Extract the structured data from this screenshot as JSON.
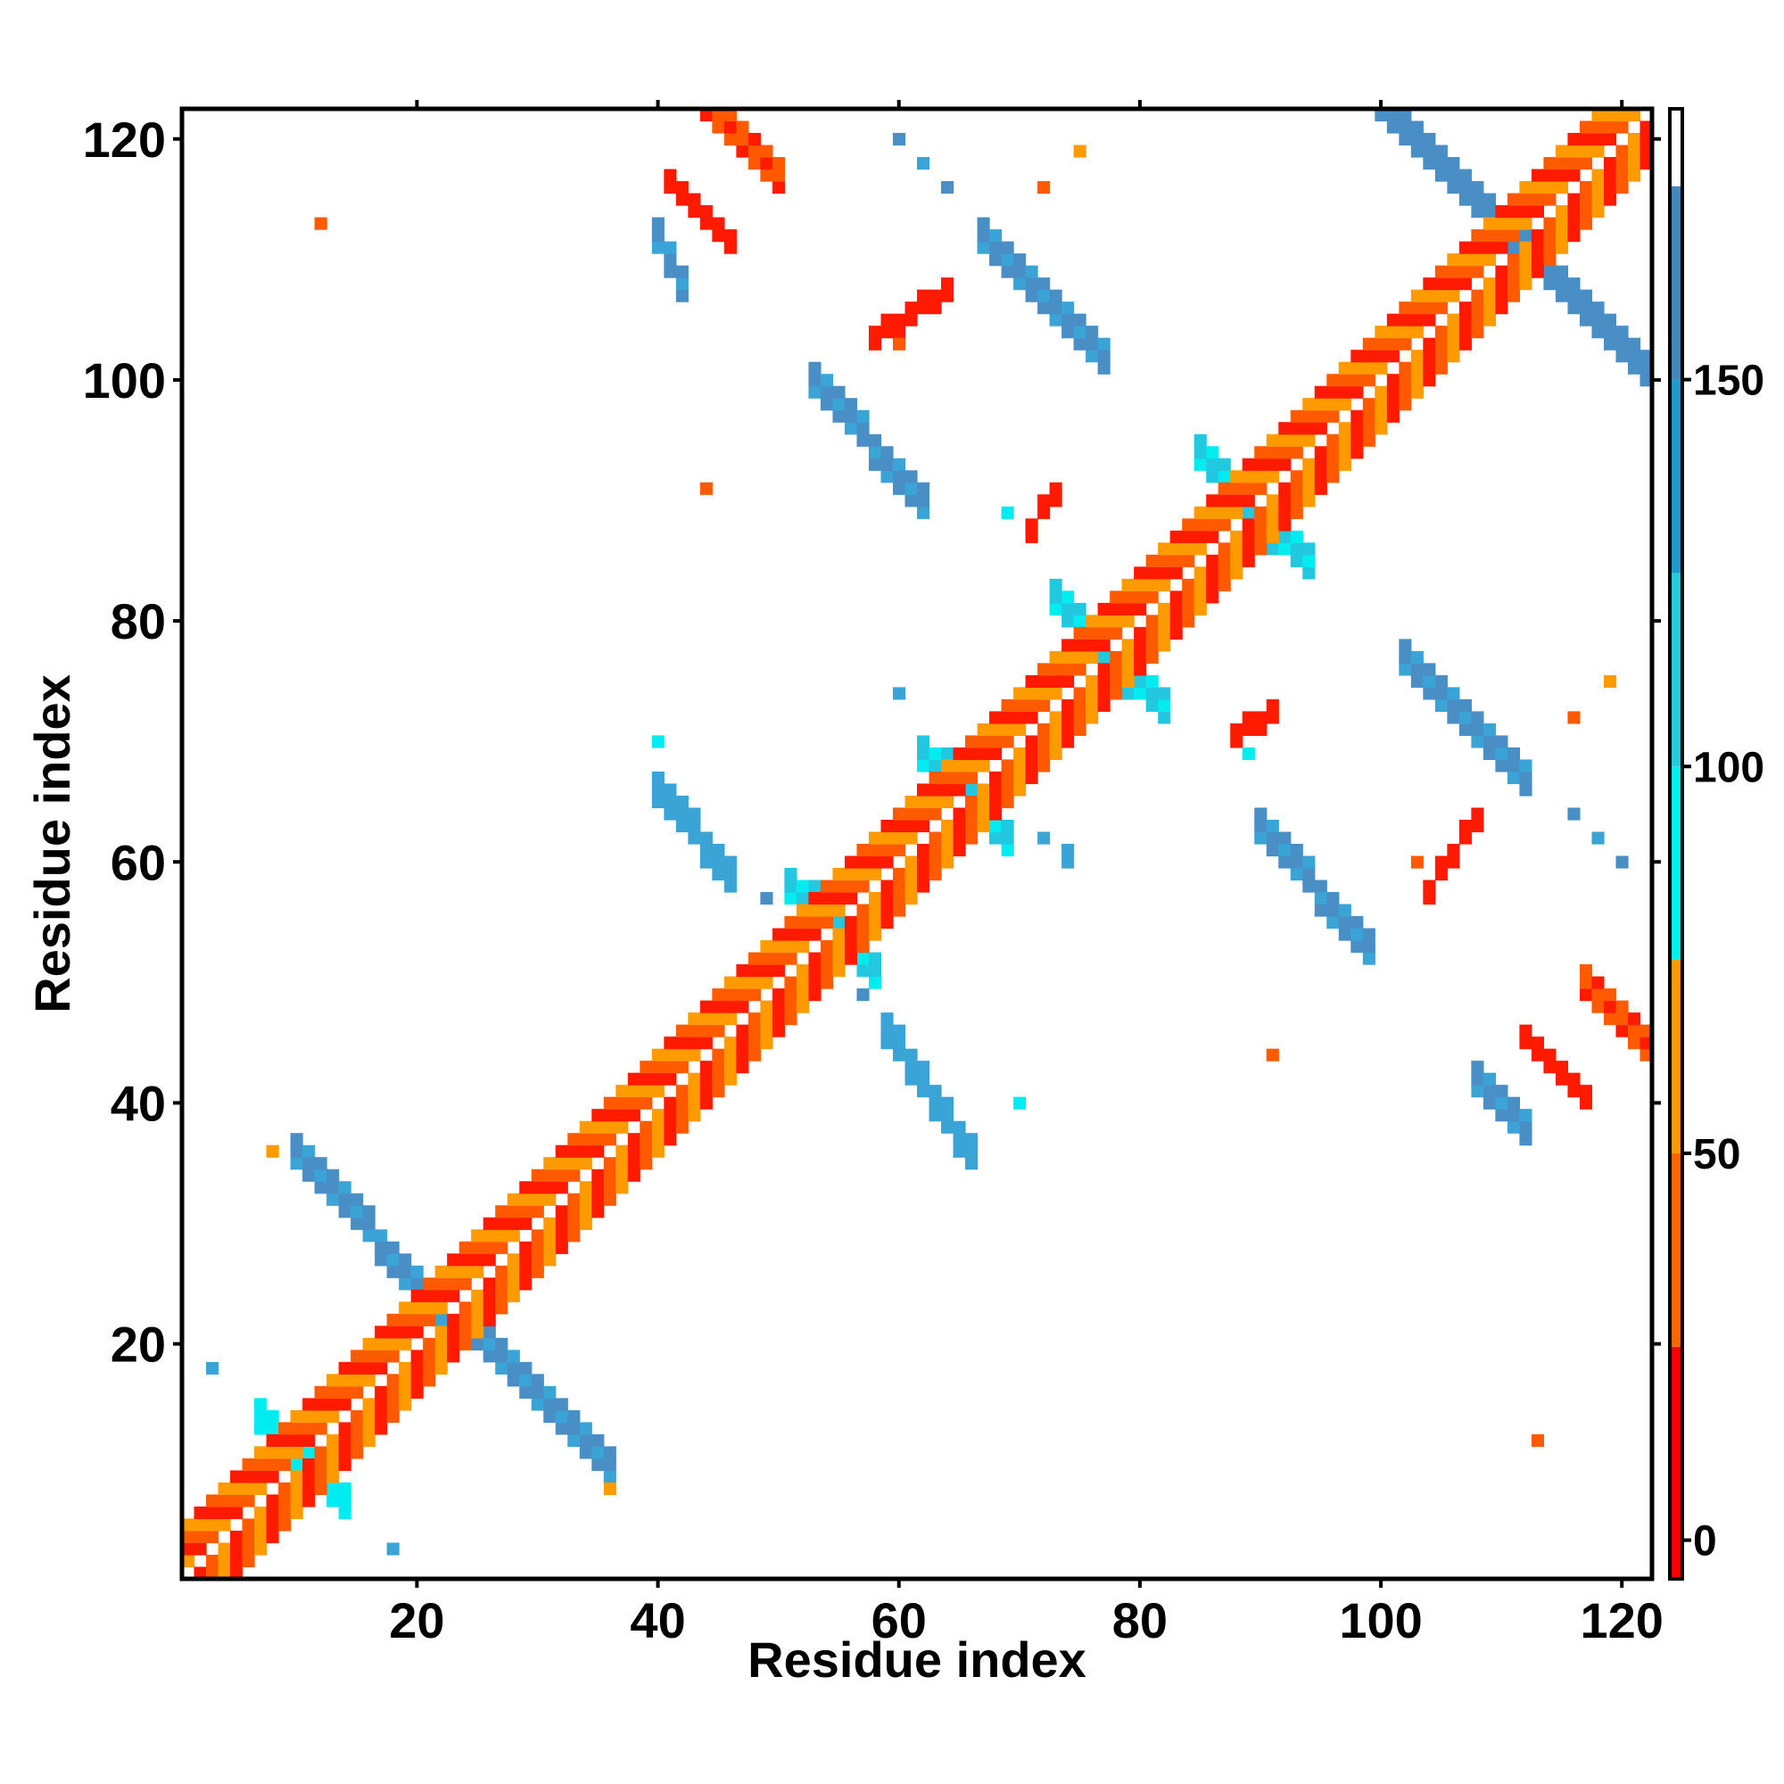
{
  "chart_data": {
    "type": "heatmap",
    "title": "",
    "xlabel": "Residue index",
    "ylabel": "Residue index",
    "xlim": [
      0.5,
      122.5
    ],
    "ylim": [
      0.5,
      122.5
    ],
    "x_ticks": [
      20,
      40,
      60,
      80,
      100,
      120
    ],
    "y_ticks": [
      20,
      40,
      60,
      80,
      100,
      120
    ],
    "grid": false,
    "colorbar": {
      "range": [
        -5,
        185
      ],
      "ticks": [
        0,
        50,
        100,
        150
      ],
      "segments": [
        {
          "from": -5,
          "to": 25,
          "color": "#ff0000"
        },
        {
          "from": 25,
          "to": 50,
          "color": "#ff6600"
        },
        {
          "from": 50,
          "to": 75,
          "color": "#ff9900"
        },
        {
          "from": 75,
          "to": 100,
          "color": "#00eeee"
        },
        {
          "from": 100,
          "to": 125,
          "color": "#22ccdd"
        },
        {
          "from": 125,
          "to": 150,
          "color": "#2299cc"
        },
        {
          "from": 150,
          "to": 175,
          "color": "#4488bb"
        },
        {
          "from": 175,
          "to": 185,
          "color": "#ffffff"
        }
      ]
    },
    "colors": {
      "red": "#ff1a00",
      "orange_red": "#ff5a00",
      "orange": "#ff9a00",
      "cyan": "#00ecf0",
      "light_blue": "#22c8e0",
      "mid_blue": "#3aa4d6",
      "steel_blue": "#4a8ec6"
    },
    "diagonal": {
      "from": 1,
      "to": 122
    },
    "regions": [
      {
        "x": [
          10,
          22
        ],
        "y": [
          23,
          36
        ],
        "dir": -1,
        "width": 3,
        "v": 160
      },
      {
        "x": [
          24,
          36
        ],
        "y": [
          10,
          22
        ],
        "dir": -1,
        "width": 3,
        "v": 160
      },
      {
        "x": [
          40,
          46
        ],
        "y": [
          59,
          66
        ],
        "dir": -1,
        "width": 3,
        "v": 145
      },
      {
        "x": [
          59,
          66
        ],
        "y": [
          36,
          46
        ],
        "dir": -1,
        "width": 3,
        "v": 145
      },
      {
        "x": [
          53,
          62
        ],
        "y": [
          90,
          100
        ],
        "dir": -1,
        "width": 3,
        "v": 165
      },
      {
        "x": [
          90,
          99
        ],
        "y": [
          53,
          63
        ],
        "dir": -1,
        "width": 3,
        "v": 165
      },
      {
        "x": [
          67,
          77
        ],
        "y": [
          102,
          112
        ],
        "dir": -1,
        "width": 3,
        "v": 165
      },
      {
        "x": [
          102,
          112
        ],
        "y": [
          67,
          77
        ],
        "dir": -1,
        "width": 3,
        "v": 165
      },
      {
        "x": [
          100,
          111
        ],
        "y": [
          112,
          123
        ],
        "dir": -1,
        "width": 3,
        "v": 170
      },
      {
        "x": [
          112,
          123
        ],
        "y": [
          100,
          111
        ],
        "dir": -1,
        "width": 3,
        "v": 170
      },
      {
        "x": [
          85,
          89
        ],
        "y": [
          89,
          94
        ],
        "dir": -1,
        "width": 3,
        "v": 110
      },
      {
        "x": [
          89,
          94
        ],
        "y": [
          85,
          89
        ],
        "dir": -1,
        "width": 3,
        "v": 110
      },
      {
        "x": [
          73,
          77
        ],
        "y": [
          77,
          82
        ],
        "dir": -1,
        "width": 3,
        "v": 110
      },
      {
        "x": [
          77,
          82
        ],
        "y": [
          73,
          77
        ],
        "dir": -1,
        "width": 3,
        "v": 110
      },
      {
        "x": [
          62,
          66
        ],
        "y": [
          66,
          69
        ],
        "dir": -1,
        "width": 3,
        "v": 110
      },
      {
        "x": [
          66,
          69
        ],
        "y": [
          62,
          66
        ],
        "dir": -1,
        "width": 3,
        "v": 110
      },
      {
        "x": [
          51,
          55
        ],
        "y": [
          55,
          58
        ],
        "dir": -1,
        "width": 3,
        "v": 110
      },
      {
        "x": [
          55,
          58
        ],
        "y": [
          51,
          55
        ],
        "dir": -1,
        "width": 3,
        "v": 110
      },
      {
        "x": [
          7,
          11
        ],
        "y": [
          10,
          14
        ],
        "dir": -1,
        "width": 3,
        "v": 95
      },
      {
        "x": [
          10,
          14
        ],
        "y": [
          7,
          11
        ],
        "dir": -1,
        "width": 3,
        "v": 95
      },
      {
        "x": [
          41,
          46
        ],
        "y": [
          112,
          117
        ],
        "dir": -1,
        "width": 2,
        "v": 10
      },
      {
        "x": [
          112,
          117
        ],
        "y": [
          41,
          46
        ],
        "dir": -1,
        "width": 2,
        "v": 10
      },
      {
        "x": [
          44,
          50
        ],
        "y": [
          117,
          123
        ],
        "dir": -1,
        "width": 3,
        "v": 40
      },
      {
        "x": [
          117,
          123
        ],
        "y": [
          44,
          50
        ],
        "dir": -1,
        "width": 3,
        "v": 40
      },
      {
        "x": [
          58,
          64
        ],
        "y": [
          104,
          108
        ],
        "dir": 1,
        "width": 2,
        "v": 10
      },
      {
        "x": [
          104,
          108
        ],
        "y": [
          58,
          64
        ],
        "dir": 1,
        "width": 2,
        "v": 10
      },
      {
        "x": [
          71,
          73
        ],
        "y": [
          88,
          91
        ],
        "dir": 1,
        "width": 2,
        "v": 15
      },
      {
        "x": [
          88,
          91
        ],
        "y": [
          71,
          73
        ],
        "dir": 1,
        "width": 2,
        "v": 15
      },
      {
        "x": [
          40,
          42
        ],
        "y": [
          108,
          112
        ],
        "dir": -1,
        "width": 3,
        "v": 155
      },
      {
        "x": [
          108,
          112
        ],
        "y": [
          38,
          42
        ],
        "dir": -1,
        "width": 3,
        "v": 155
      }
    ],
    "points": [
      {
        "x": 3,
        "y": 18,
        "v": 145
      },
      {
        "x": 18,
        "y": 3,
        "v": 145
      },
      {
        "x": 60,
        "y": 120,
        "v": 150
      },
      {
        "x": 120,
        "y": 60,
        "v": 150
      },
      {
        "x": 62,
        "y": 118,
        "v": 145
      },
      {
        "x": 118,
        "y": 62,
        "v": 145
      },
      {
        "x": 64,
        "y": 116,
        "v": 150
      },
      {
        "x": 116,
        "y": 64,
        "v": 150
      },
      {
        "x": 44,
        "y": 91,
        "v": 40
      },
      {
        "x": 91,
        "y": 44,
        "v": 40
      },
      {
        "x": 60,
        "y": 74,
        "v": 140
      },
      {
        "x": 74,
        "y": 60,
        "v": 140
      },
      {
        "x": 40,
        "y": 70,
        "v": 90
      },
      {
        "x": 70,
        "y": 40,
        "v": 90
      },
      {
        "x": 72,
        "y": 62,
        "v": 140
      },
      {
        "x": 74,
        "y": 61,
        "v": 130
      },
      {
        "x": 57,
        "y": 49,
        "v": 150
      },
      {
        "x": 49,
        "y": 57,
        "v": 150
      },
      {
        "x": 75,
        "y": 119,
        "v": 60
      },
      {
        "x": 119,
        "y": 75,
        "v": 60
      },
      {
        "x": 72,
        "y": 116,
        "v": 40
      },
      {
        "x": 116,
        "y": 72,
        "v": 40
      },
      {
        "x": 60,
        "y": 103,
        "v": 40
      },
      {
        "x": 103,
        "y": 60,
        "v": 40
      },
      {
        "x": 69,
        "y": 89,
        "v": 90
      },
      {
        "x": 89,
        "y": 69,
        "v": 90
      },
      {
        "x": 36,
        "y": 8,
        "v": 60
      },
      {
        "x": 8,
        "y": 36,
        "v": 60
      },
      {
        "x": 113,
        "y": 12,
        "v": 30
      },
      {
        "x": 12,
        "y": 113,
        "v": 30
      }
    ]
  }
}
